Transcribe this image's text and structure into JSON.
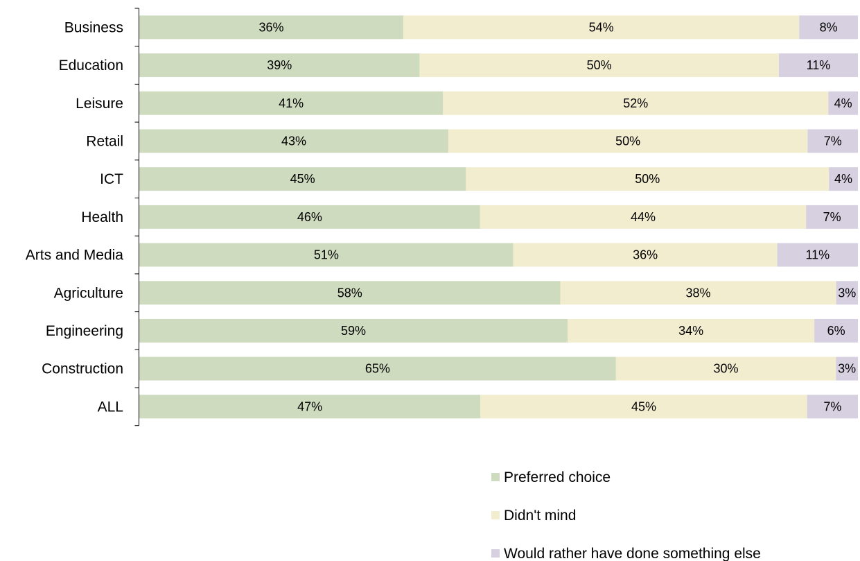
{
  "chart_data": {
    "type": "bar",
    "orientation": "horizontal",
    "stacked": "percent",
    "categories": [
      "Business",
      "Education",
      "Leisure",
      "Retail",
      "ICT",
      "Health",
      "Arts and Media",
      "Agriculture",
      "Engineering",
      "Construction",
      "ALL"
    ],
    "series": [
      {
        "name": "Preferred choice",
        "color": "#cfdbbf",
        "values": [
          36,
          39,
          41,
          43,
          45,
          46,
          51,
          58,
          59,
          65,
          47
        ],
        "labels": [
          "36%",
          "39%",
          "41%",
          "43%",
          "45%",
          "46%",
          "51%",
          "58%",
          "59%",
          "65%",
          "47%"
        ]
      },
      {
        "name": "Didn't mind",
        "color": "#f3edd0",
        "values": [
          54,
          50,
          52,
          50,
          50,
          44,
          36,
          38,
          34,
          30,
          45
        ],
        "labels": [
          "54%",
          "50%",
          "52%",
          "50%",
          "50%",
          "44%",
          "36%",
          "38%",
          "34%",
          "30%",
          "45%"
        ]
      },
      {
        "name": "Would rather have done something else",
        "color": "#d6d0e1",
        "values": [
          8,
          11,
          4,
          7,
          4,
          7,
          11,
          3,
          6,
          3,
          7
        ],
        "labels": [
          "8%",
          "11%",
          "4%",
          "7%",
          "4%",
          "7%",
          "11%",
          "3%",
          "6%",
          "3%",
          "7%"
        ]
      }
    ],
    "title": "",
    "xlabel": "",
    "ylabel": "",
    "grid": false,
    "legend_position": "bottom-right"
  }
}
